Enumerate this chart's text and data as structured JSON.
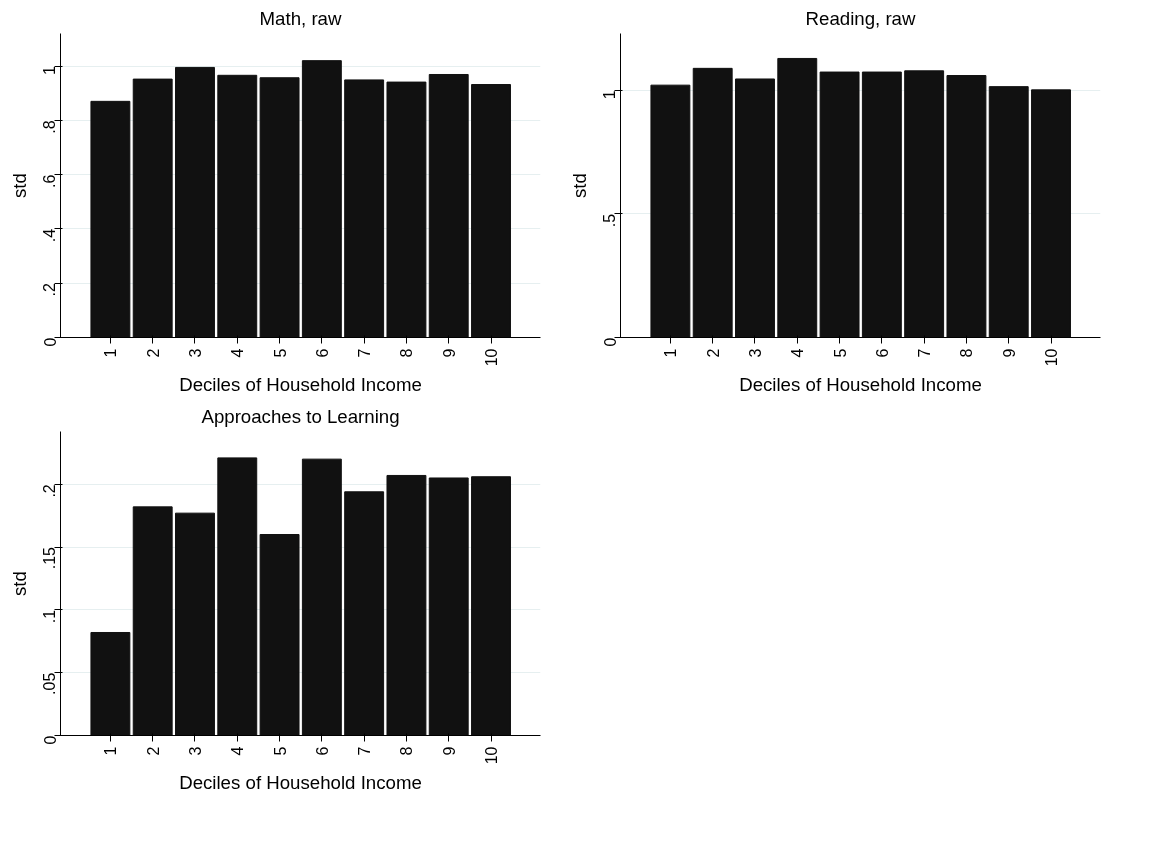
{
  "chart_data": [
    {
      "type": "bar",
      "title": "Math, raw",
      "xlabel": "Deciles of Household Income",
      "ylabel": "std",
      "categories": [
        "1",
        "2",
        "3",
        "4",
        "5",
        "6",
        "7",
        "8",
        "9",
        "10"
      ],
      "values": [
        0.87,
        0.952,
        0.995,
        0.966,
        0.957,
        1.02,
        0.949,
        0.941,
        0.969,
        0.932
      ],
      "color": "#111111",
      "ylim": [
        0,
        1.12
      ],
      "yticks": [
        {
          "value": 0,
          "label": "0"
        },
        {
          "value": 0.2,
          "label": ".2"
        },
        {
          "value": 0.4,
          "label": ".4"
        },
        {
          "value": 0.6,
          "label": ".6"
        },
        {
          "value": 0.8,
          "label": ".8"
        },
        {
          "value": 1,
          "label": "1"
        }
      ],
      "grid": "y"
    },
    {
      "type": "bar",
      "title": "Reading, raw",
      "xlabel": "Deciles of Household Income",
      "ylabel": "std",
      "categories": [
        "1",
        "2",
        "3",
        "4",
        "5",
        "6",
        "7",
        "8",
        "9",
        "10"
      ],
      "values": [
        1.021,
        1.089,
        1.046,
        1.129,
        1.074,
        1.074,
        1.079,
        1.06,
        1.015,
        1.002
      ],
      "color": "#111111",
      "ylim": [
        0,
        1.23
      ],
      "yticks": [
        {
          "value": 0,
          "label": "0"
        },
        {
          "value": 0.5,
          "label": ".5"
        },
        {
          "value": 1,
          "label": "1"
        }
      ],
      "grid": "y"
    },
    {
      "type": "bar",
      "title": "Approaches to Learning",
      "xlabel": "Deciles of Household Income",
      "ylabel": "std",
      "categories": [
        "1",
        "2",
        "3",
        "4",
        "5",
        "6",
        "7",
        "8",
        "9",
        "10"
      ],
      "values": [
        0.082,
        0.182,
        0.177,
        0.221,
        0.16,
        0.22,
        0.194,
        0.207,
        0.205,
        0.206
      ],
      "color": "#111111",
      "ylim": [
        0,
        0.242
      ],
      "yticks": [
        {
          "value": 0,
          "label": "0"
        },
        {
          "value": 0.05,
          "label": ".05"
        },
        {
          "value": 0.1,
          "label": ".1"
        },
        {
          "value": 0.15,
          "label": ".15"
        },
        {
          "value": 0.2,
          "label": ".2"
        }
      ],
      "grid": "y"
    }
  ]
}
